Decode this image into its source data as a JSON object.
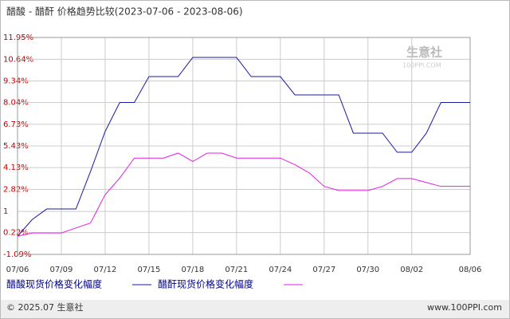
{
  "chart_data": {
    "type": "line",
    "title": "醋酸 - 醋酐 价格趋势比较(2023-07-06 - 2023-08-06)",
    "watermark": {
      "name": "生意社",
      "site": "100PPI.COM"
    },
    "footer": {
      "left": "© 2025.07 生意社",
      "right": "www.100PPI.com"
    },
    "categories": [
      "07/06",
      null,
      null,
      "07/09",
      null,
      null,
      "07/12",
      null,
      null,
      "07/15",
      null,
      null,
      "07/18",
      null,
      null,
      "07/21",
      null,
      null,
      "07/24",
      null,
      null,
      "07/27",
      null,
      null,
      "07/30",
      null,
      null,
      "08/02",
      null,
      null,
      null,
      "08/06"
    ],
    "series": [
      {
        "name": "醋酸现货价格变化幅度",
        "color": "#1a1aa0",
        "values": [
          0,
          1.0,
          1.64,
          1.64,
          1.64,
          3.9,
          6.3,
          8.04,
          8.04,
          9.6,
          9.6,
          9.6,
          10.75,
          10.75,
          10.75,
          10.75,
          9.6,
          9.6,
          9.6,
          8.5,
          8.5,
          8.5,
          8.5,
          6.2,
          6.2,
          6.2,
          5.05,
          5.05,
          6.2,
          8.04,
          8.04,
          8.04
        ]
      },
      {
        "name": "醋酐现货价格变化幅度",
        "color": "#e020e0",
        "values": [
          0,
          0.2,
          0.2,
          0.2,
          0.5,
          0.8,
          2.5,
          3.5,
          4.7,
          4.7,
          4.7,
          5.0,
          4.5,
          5.0,
          5.0,
          4.7,
          4.7,
          4.7,
          4.7,
          4.3,
          3.8,
          3.0,
          2.75,
          2.75,
          2.75,
          3.0,
          3.47,
          3.47,
          3.23,
          3.0,
          3.0,
          3.0
        ]
      }
    ],
    "ylim": [
      -1.09,
      11.95
    ],
    "yticks": [
      {
        "value": 11.95,
        "label": "11.95%"
      },
      {
        "value": 10.64,
        "label": "10.64%"
      },
      {
        "value": 9.34,
        "label": "9.34%"
      },
      {
        "value": 8.04,
        "label": "8.04%"
      },
      {
        "value": 6.73,
        "label": "6.73%"
      },
      {
        "value": 5.43,
        "label": "5.43%"
      },
      {
        "value": 4.13,
        "label": "4.13%"
      },
      {
        "value": 2.82,
        "label": "2.82%"
      },
      {
        "value": 1.49,
        "label": "1"
      },
      {
        "value": 0.22,
        "label": "0.22%"
      },
      {
        "value": -1.09,
        "label": "-1.09%"
      }
    ],
    "grid": true
  }
}
